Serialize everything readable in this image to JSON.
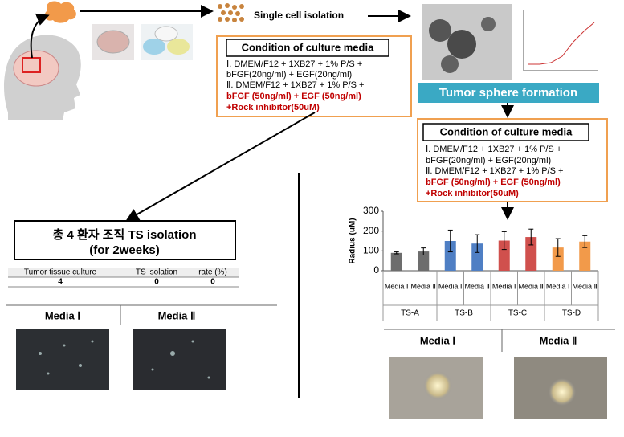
{
  "top": {
    "step": "Single cell isolation"
  },
  "media_box_1": {
    "title": "Condition of culture media",
    "lines": [
      "Ⅰ. DMEM/F12 + 1XB27 + 1% P/S +",
      "bFGF(20ng/ml) + EGF(20ng/ml)",
      "Ⅱ. DMEM/F12 + 1XB27 + 1% P/S +",
      "bFGF (50ng/ml) + EGF (50ng/ml)",
      "+Rock inhibitor(50uM)"
    ]
  },
  "sphere_label": "Tumor sphere formation",
  "media_box_2": {
    "title": "Condition of culture media",
    "lines": [
      "Ⅰ. DMEM/F12 + 1XB27 + 1% P/S +",
      "bFGF(20ng/ml) + EGF(20ng/ml)",
      "Ⅱ. DMEM/F12 + 1XB27 + 1% P/S +",
      "bFGF (50ng/ml) + EGF (50ng/ml)",
      "+Rock inhibitor(50uM)"
    ]
  },
  "isolation": {
    "title": "총 4 환자 조직  TS isolation",
    "subtitle": "(for 2weeks)",
    "table": {
      "header": [
        "Tumor tissue culture",
        "TS isolation",
        "rate (%)"
      ],
      "rows": [
        [
          4,
          0,
          0
        ]
      ]
    }
  },
  "left_images": [
    "Media Ⅰ",
    "Media Ⅱ"
  ],
  "right_images": [
    "Media Ⅰ",
    "Media Ⅱ"
  ],
  "chart": {
    "type": "bar",
    "y_label": "Radius (uM)",
    "categories": [
      "Media Ⅰ",
      "Media Ⅱ",
      "Media Ⅰ",
      "Media Ⅱ",
      "Media Ⅰ",
      "Media Ⅱ",
      "Media Ⅰ",
      "Media Ⅱ"
    ],
    "groups": [
      "TS-A",
      "TS-B",
      "TS-C",
      "TS-D"
    ],
    "values": [
      90,
      97,
      150,
      137,
      152,
      170,
      117,
      147
    ],
    "errors": [
      5,
      18,
      55,
      45,
      45,
      40,
      45,
      30
    ],
    "colors": [
      "#6d6d6d",
      "#6d6d6d",
      "#4f7fc4",
      "#4f7fc4",
      "#d0504d",
      "#d0504d",
      "#f29a4a",
      "#f29a4a"
    ],
    "ylim": [
      0,
      300
    ],
    "yticks": [
      0,
      100,
      200,
      300
    ]
  }
}
